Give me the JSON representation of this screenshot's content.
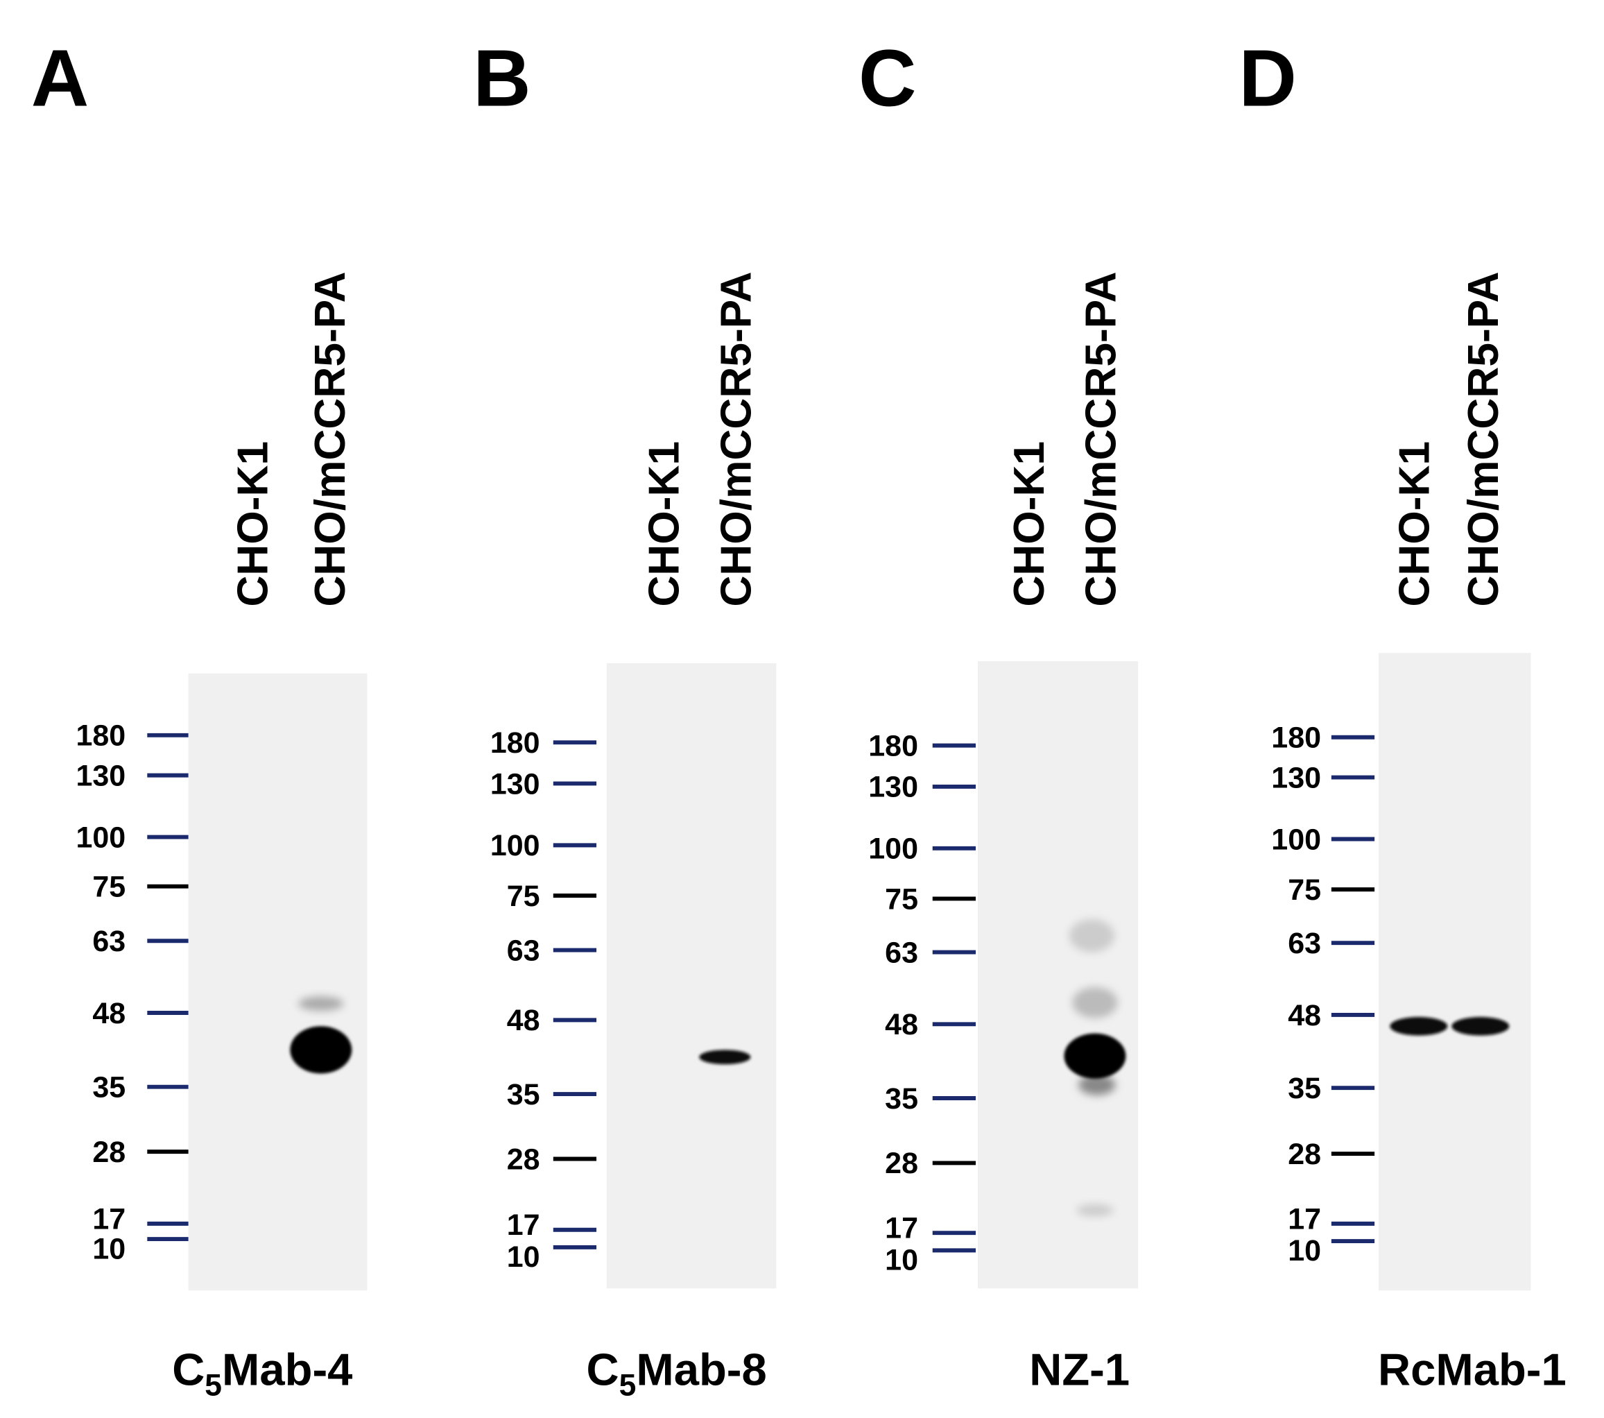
{
  "panels": [
    {
      "letter": "A",
      "lanes": [
        "CHO-K1",
        "CHO/mCCR5-PA"
      ],
      "markers": [
        "180",
        "130",
        "100",
        "75",
        "63",
        "48",
        "35",
        "28",
        "17",
        "10"
      ],
      "antibody": {
        "prefix": "C",
        "subscript": "5",
        "suffix": "Mab-4"
      }
    },
    {
      "letter": "B",
      "lanes": [
        "CHO-K1",
        "CHO/mCCR5-PA"
      ],
      "markers": [
        "180",
        "130",
        "100",
        "75",
        "63",
        "48",
        "35",
        "28",
        "17",
        "10"
      ],
      "antibody": {
        "prefix": "C",
        "subscript": "5",
        "suffix": "Mab-8"
      }
    },
    {
      "letter": "C",
      "lanes": [
        "CHO-K1",
        "CHO/mCCR5-PA"
      ],
      "markers": [
        "180",
        "130",
        "100",
        "75",
        "63",
        "48",
        "35",
        "28",
        "17",
        "10"
      ],
      "antibody": {
        "prefix": "NZ-1"
      }
    },
    {
      "letter": "D",
      "lanes": [
        "CHO-K1",
        "CHO/mCCR5-PA"
      ],
      "markers": [
        "180",
        "130",
        "100",
        "75",
        "63",
        "48",
        "35",
        "28",
        "17",
        "10"
      ],
      "antibody": {
        "prefix": "RcMab-1"
      }
    }
  ]
}
